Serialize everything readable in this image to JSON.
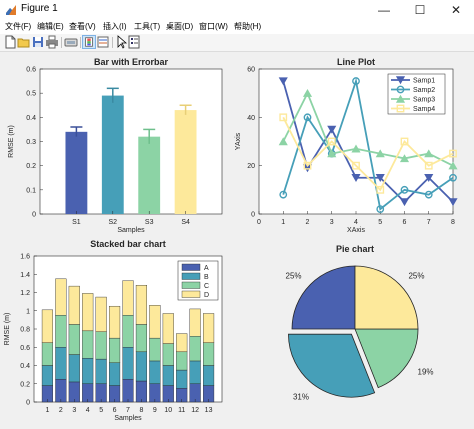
{
  "window": {
    "title": "Figure 1",
    "minimize": "—",
    "maximize": "☐",
    "close": "✕"
  },
  "menu": [
    "文件(F)",
    "编辑(E)",
    "查看(V)",
    "插入(I)",
    "工具(T)",
    "桌面(D)",
    "窗口(W)",
    "帮助(H)"
  ],
  "toolbar_icons": [
    "new-file-icon",
    "open-folder-icon",
    "save-icon",
    "print-icon",
    "link-icon",
    "insert-colorbar-icon",
    "insert-legend-icon",
    "pointer-icon",
    "property-inspector-icon"
  ],
  "colors": {
    "c1": "#4a61b0",
    "c2": "#469fb8",
    "c3": "#8cd3a5",
    "c4": "#fde99b"
  },
  "chart_data": [
    {
      "type": "bar",
      "title": "Bar with Errorbar",
      "xlabel": "Samples",
      "ylabel": "RMSE (m)",
      "categories": [
        "S1",
        "S2",
        "S3",
        "S4"
      ],
      "values": [
        0.34,
        0.49,
        0.32,
        0.43
      ],
      "errors": [
        0.02,
        0.03,
        0.03,
        0.02
      ],
      "ylim": [
        0,
        0.6
      ],
      "yticks": [
        0,
        0.1,
        0.2,
        0.3,
        0.4,
        0.5,
        0.6
      ],
      "ytick_labels": [
        "0",
        "0.1",
        "0.2",
        "0.3",
        "0.4",
        "0.5",
        "0.6"
      ]
    },
    {
      "type": "line",
      "title": "Line Plot",
      "xlabel": "XAxis",
      "ylabel": "YAxis",
      "x": [
        1,
        2,
        3,
        4,
        5,
        6,
        7,
        8
      ],
      "xlim": [
        0,
        8
      ],
      "ylim": [
        0,
        60
      ],
      "xticks": [
        0,
        1,
        2,
        3,
        4,
        5,
        6,
        7,
        8
      ],
      "xtick_labels": [
        "0",
        "1",
        "2",
        "3",
        "4",
        "5",
        "6",
        "7",
        "8"
      ],
      "yticks": [
        0,
        20,
        40,
        60
      ],
      "ytick_labels": [
        "0",
        "20",
        "40",
        "60"
      ],
      "legend_position": "top-right",
      "series": [
        {
          "name": "Samp1",
          "marker": "triangle-down",
          "values": [
            55,
            19,
            35,
            15,
            15,
            5,
            15,
            5
          ]
        },
        {
          "name": "Samp2",
          "marker": "circle",
          "values": [
            8,
            40,
            25,
            55,
            2,
            10,
            8,
            15
          ]
        },
        {
          "name": "Samp3",
          "marker": "triangle-up",
          "values": [
            30,
            50,
            25,
            27,
            25,
            23,
            25,
            20
          ]
        },
        {
          "name": "Samp4",
          "marker": "square",
          "values": [
            40,
            20,
            30,
            20,
            10,
            30,
            20,
            25
          ]
        }
      ]
    },
    {
      "type": "bar",
      "stacked": true,
      "title": "Stacked bar chart",
      "xlabel": "Samples",
      "ylabel": "RMSE (m)",
      "categories": [
        "1",
        "2",
        "3",
        "4",
        "5",
        "6",
        "7",
        "8",
        "9",
        "10",
        "11",
        "12",
        "13"
      ],
      "ylim": [
        0,
        1.6
      ],
      "yticks": [
        0,
        0.2,
        0.4,
        0.6,
        0.8,
        1,
        1.2,
        1.4,
        1.6
      ],
      "ytick_labels": [
        "0",
        "0.2",
        "0.4",
        "0.6",
        "0.8",
        "1",
        "1.2",
        "1.4",
        "1.6"
      ],
      "legend_position": "top-right",
      "series": [
        {
          "name": "A",
          "values": [
            0.18,
            0.25,
            0.22,
            0.2,
            0.2,
            0.18,
            0.25,
            0.23,
            0.2,
            0.18,
            0.15,
            0.2,
            0.18
          ]
        },
        {
          "name": "B",
          "values": [
            0.22,
            0.35,
            0.3,
            0.28,
            0.27,
            0.25,
            0.35,
            0.32,
            0.25,
            0.22,
            0.2,
            0.25,
            0.22
          ]
        },
        {
          "name": "C",
          "values": [
            0.25,
            0.35,
            0.33,
            0.3,
            0.3,
            0.27,
            0.35,
            0.3,
            0.25,
            0.24,
            0.2,
            0.27,
            0.25
          ]
        },
        {
          "name": "D",
          "values": [
            0.36,
            0.4,
            0.42,
            0.41,
            0.38,
            0.35,
            0.38,
            0.43,
            0.36,
            0.33,
            0.2,
            0.3,
            0.32
          ]
        }
      ]
    },
    {
      "type": "pie",
      "title": "Pie chart",
      "values": [
        25,
        31,
        19,
        25
      ],
      "labels": [
        "25%",
        "31%",
        "19%",
        "25%"
      ],
      "explode": [
        false,
        true,
        false,
        false
      ]
    }
  ]
}
